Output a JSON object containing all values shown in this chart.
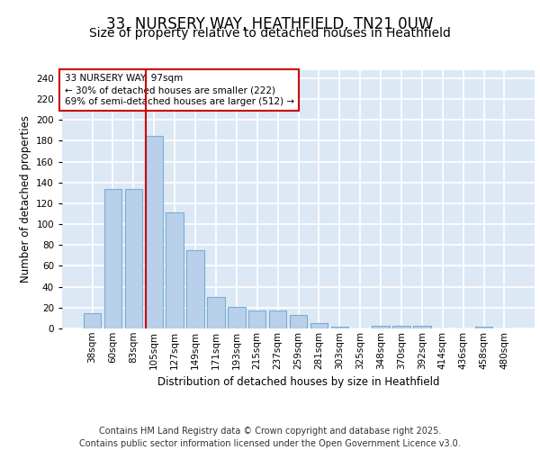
{
  "title1": "33, NURSERY WAY, HEATHFIELD, TN21 0UW",
  "title2": "Size of property relative to detached houses in Heathfield",
  "xlabel": "Distribution of detached houses by size in Heathfield",
  "ylabel": "Number of detached properties",
  "categories": [
    "38sqm",
    "60sqm",
    "83sqm",
    "105sqm",
    "127sqm",
    "149sqm",
    "171sqm",
    "193sqm",
    "215sqm",
    "237sqm",
    "259sqm",
    "281sqm",
    "303sqm",
    "325sqm",
    "348sqm",
    "370sqm",
    "392sqm",
    "414sqm",
    "436sqm",
    "458sqm",
    "480sqm"
  ],
  "values": [
    15,
    134,
    134,
    185,
    111,
    75,
    30,
    21,
    17,
    17,
    13,
    5,
    2,
    0,
    3,
    3,
    3,
    0,
    0,
    2,
    0
  ],
  "bar_color": "#b8d0ea",
  "bar_edge_color": "#7aadd4",
  "background_color": "#dde8f5",
  "grid_color": "#ffffff",
  "annotation_text": "33 NURSERY WAY: 97sqm\n← 30% of detached houses are smaller (222)\n69% of semi-detached houses are larger (512) →",
  "vline_x": 3.0,
  "vline_color": "#cc0000",
  "annotation_box_color": "#ffffff",
  "annotation_box_edge": "#cc0000",
  "ylim": [
    0,
    248
  ],
  "yticks": [
    0,
    20,
    40,
    60,
    80,
    100,
    120,
    140,
    160,
    180,
    200,
    220,
    240
  ],
  "footer": "Contains HM Land Registry data © Crown copyright and database right 2025.\nContains public sector information licensed under the Open Government Licence v3.0.",
  "title_fontsize": 12,
  "subtitle_fontsize": 10,
  "axis_label_fontsize": 8.5,
  "tick_fontsize": 7.5,
  "annotation_fontsize": 7.5,
  "footer_fontsize": 7
}
